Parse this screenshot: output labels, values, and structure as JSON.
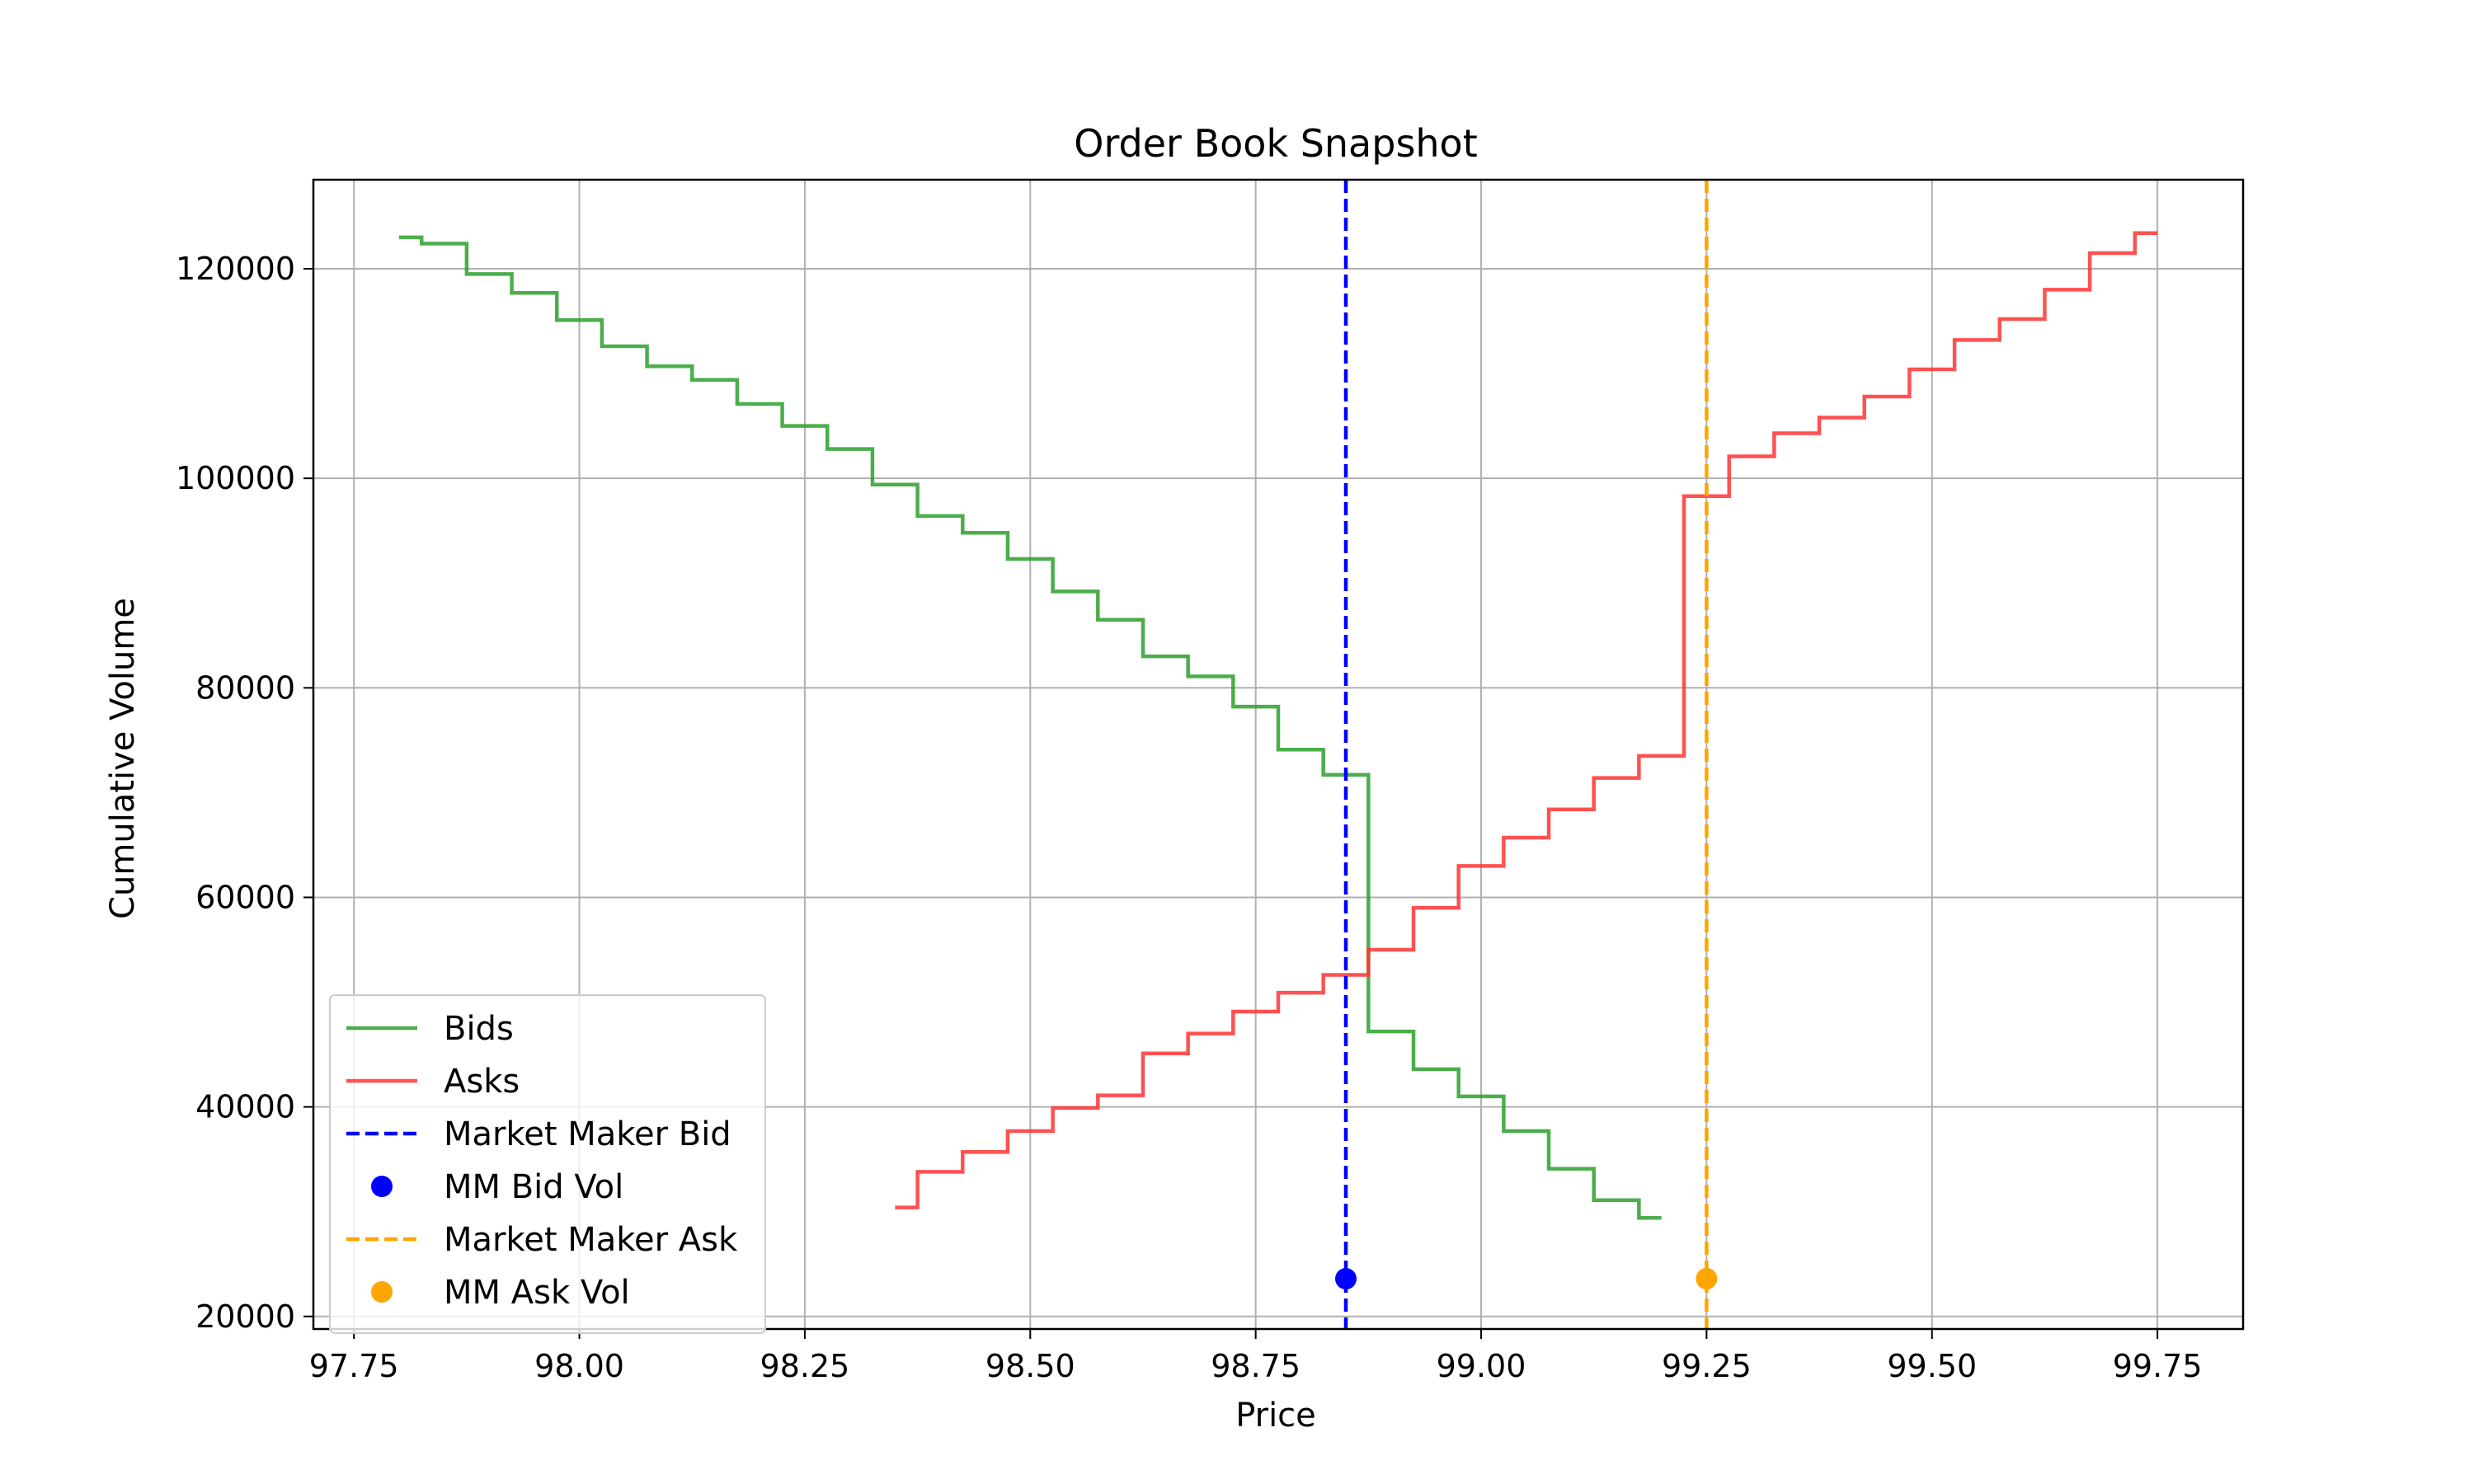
{
  "chart_data": {
    "type": "line",
    "title": "Order Book Snapshot",
    "xlabel": "Price",
    "ylabel": "Cumulative Volume",
    "xlim": [
      97.705,
      99.845
    ],
    "ylim": [
      18800,
      128500
    ],
    "xticks": [
      97.75,
      98.0,
      98.25,
      98.5,
      98.75,
      99.0,
      99.25,
      99.5,
      99.75
    ],
    "xtick_labels": [
      "97.75",
      "98.00",
      "98.25",
      "98.50",
      "98.75",
      "99.00",
      "99.25",
      "99.50",
      "99.75"
    ],
    "yticks": [
      20000,
      40000,
      60000,
      80000,
      100000,
      120000
    ],
    "ytick_labels": [
      "20000",
      "40000",
      "60000",
      "80000",
      "100000",
      "120000"
    ],
    "grid": true,
    "legend_position": "lower-left",
    "series": [
      {
        "name": "Bids",
        "kind": "step",
        "color": "#2ca02c",
        "x": [
          97.8,
          97.825,
          97.875,
          97.925,
          97.975,
          98.025,
          98.075,
          98.125,
          98.175,
          98.225,
          98.275,
          98.325,
          98.375,
          98.425,
          98.475,
          98.525,
          98.575,
          98.625,
          98.675,
          98.725,
          98.775,
          98.825,
          98.875,
          98.925,
          98.975,
          99.025,
          99.075,
          99.125,
          99.175,
          99.2
        ],
        "y": [
          123000,
          122400,
          119500,
          117700,
          115100,
          112600,
          110700,
          109400,
          107100,
          105000,
          102800,
          99400,
          96400,
          94800,
          92300,
          89200,
          86500,
          83000,
          81100,
          78200,
          74100,
          71700,
          47200,
          43600,
          41000,
          37700,
          34100,
          31100,
          29400,
          29400
        ]
      },
      {
        "name": "Asks",
        "kind": "step",
        "color": "#ff3333",
        "x": [
          98.35,
          98.375,
          98.425,
          98.475,
          98.525,
          98.575,
          98.625,
          98.675,
          98.725,
          98.775,
          98.825,
          98.875,
          98.925,
          98.975,
          99.025,
          99.075,
          99.125,
          99.175,
          99.225,
          99.275,
          99.325,
          99.375,
          99.425,
          99.475,
          99.525,
          99.575,
          99.625,
          99.675,
          99.725,
          99.75
        ],
        "y": [
          30400,
          33800,
          35700,
          37700,
          39900,
          41100,
          45100,
          47000,
          49100,
          50900,
          52600,
          55000,
          59000,
          63000,
          65700,
          68400,
          71400,
          73500,
          98300,
          102100,
          104300,
          105800,
          107800,
          110400,
          113200,
          115200,
          118000,
          121500,
          123400,
          123400
        ]
      },
      {
        "name": "Market Maker Bid",
        "kind": "vline",
        "color": "#0000ff",
        "x": 98.85
      },
      {
        "name": "MM Bid Vol",
        "kind": "point",
        "color": "#0000ff",
        "x": 98.85,
        "y": 23600
      },
      {
        "name": "Market Maker Ask",
        "kind": "vline",
        "color": "#ffa500",
        "x": 99.25
      },
      {
        "name": "MM Ask Vol",
        "kind": "point",
        "color": "#ffa500",
        "x": 99.25,
        "y": 23600
      }
    ]
  }
}
